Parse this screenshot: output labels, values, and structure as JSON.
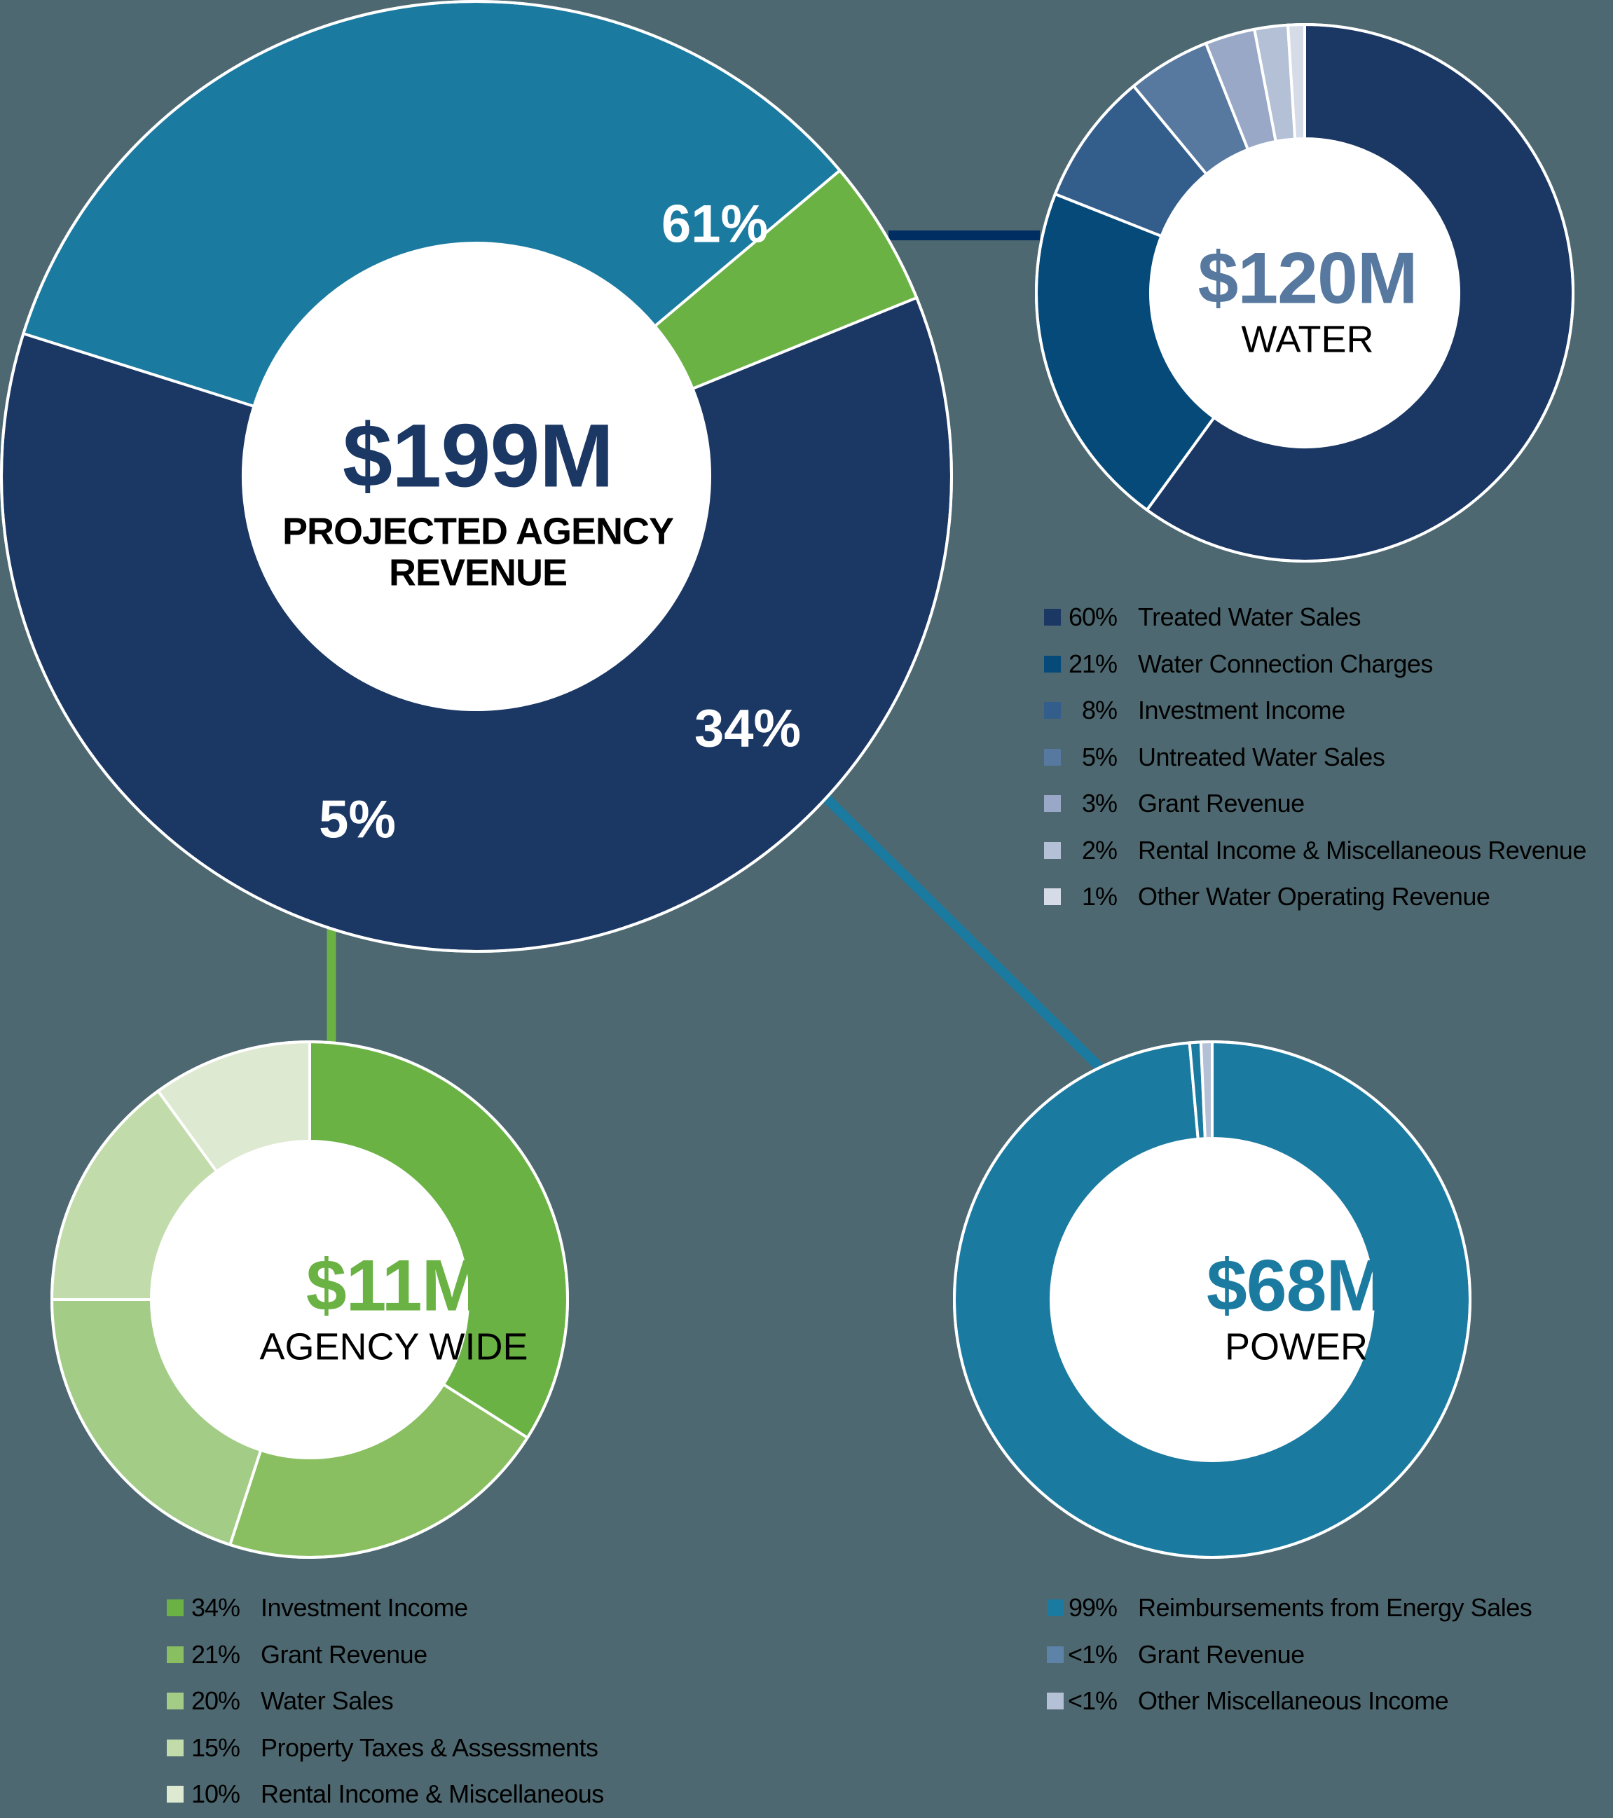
{
  "background_color": "#4d6870",
  "main": {
    "amount": "$199M",
    "caption_line1": "PROJECTED AGENCY",
    "caption_line2": "REVENUE",
    "amount_color": "#1b3764",
    "segment_labels": {
      "water": "61%",
      "power": "34%",
      "agency_wide": "5%"
    }
  },
  "water": {
    "amount": "$120M",
    "caption": "WATER",
    "amount_color": "#57789f",
    "legend": [
      {
        "pct": "60%",
        "label": "Treated Water Sales",
        "color": "#1b3764"
      },
      {
        "pct": "21%",
        "label": "Water Connection Charges",
        "color": "#054a78"
      },
      {
        "pct": "8%",
        "label": "Investment Income",
        "color": "#335d8a"
      },
      {
        "pct": "5%",
        "label": "Untreated Water Sales",
        "color": "#57789f"
      },
      {
        "pct": "3%",
        "label": "Grant Revenue",
        "color": "#98a8c6"
      },
      {
        "pct": "2%",
        "label": "Rental Income & Miscellaneous Revenue",
        "color": "#b3c0d5"
      },
      {
        "pct": "1%",
        "label": "Other Water Operating Revenue",
        "color": "#d6dbe8"
      }
    ]
  },
  "agency_wide": {
    "amount": "$11M",
    "caption": "AGENCY WIDE",
    "amount_color": "#6bb245",
    "legend": [
      {
        "pct": "34%",
        "label": "Investment Income",
        "color": "#6bb245"
      },
      {
        "pct": "21%",
        "label": "Grant Revenue",
        "color": "#89bf61"
      },
      {
        "pct": "20%",
        "label": "Water Sales",
        "color": "#a3cc86"
      },
      {
        "pct": "15%",
        "label": "Property Taxes & Assessments",
        "color": "#c1dbaa"
      },
      {
        "pct": "10%",
        "label": "Rental Income & Miscellaneous",
        "color": "#dde9d0"
      }
    ]
  },
  "power": {
    "amount": "$68M",
    "caption": "POWER",
    "amount_color": "#1b7aa0",
    "legend": [
      {
        "pct": "99%",
        "label": "Reimbursements from Energy Sales",
        "color": "#1b7aa0"
      },
      {
        "pct": "<1%",
        "label": "Grant Revenue",
        "color": "#5d84a8"
      },
      {
        "pct": "<1%",
        "label": "Other Miscellaneous Income",
        "color": "#b3c0d5"
      }
    ]
  },
  "chart_data": [
    {
      "type": "pie",
      "title": "$199M Projected Agency Revenue",
      "categories": [
        "Water",
        "Power",
        "Agency Wide"
      ],
      "values": [
        61,
        34,
        5
      ],
      "total": "$199M",
      "colors": [
        "#1b3764",
        "#1b7aa0",
        "#6bb245"
      ],
      "start_angle_deg": 67.9
    },
    {
      "type": "pie",
      "title": "$120M Water",
      "categories": [
        "Treated Water Sales",
        "Water Connection Charges",
        "Investment Income",
        "Untreated Water Sales",
        "Grant Revenue",
        "Rental Income & Miscellaneous Revenue",
        "Other Water Operating Revenue"
      ],
      "values": [
        60,
        21,
        8,
        5,
        3,
        2,
        1
      ],
      "total": "$120M",
      "colors": [
        "#1b3764",
        "#054a78",
        "#335d8a",
        "#57789f",
        "#98a8c6",
        "#b3c0d5",
        "#d6dbe8"
      ],
      "start_angle_deg": 0
    },
    {
      "type": "pie",
      "title": "$11M Agency Wide",
      "categories": [
        "Investment Income",
        "Grant Revenue",
        "Water Sales",
        "Property Taxes & Assessments",
        "Rental Income & Miscellaneous"
      ],
      "values": [
        34,
        21,
        20,
        15,
        10
      ],
      "total": "$11M",
      "colors": [
        "#6bb245",
        "#89bf61",
        "#a3cc86",
        "#c1dbaa",
        "#dde9d0"
      ],
      "start_angle_deg": 0
    },
    {
      "type": "pie",
      "title": "$68M Power",
      "categories": [
        "Reimbursements from Energy Sales",
        "Grant Revenue",
        "Other Miscellaneous Income"
      ],
      "values": [
        98.6,
        0.7,
        0.7
      ],
      "value_labels": [
        "99%",
        "<1%",
        "<1%"
      ],
      "total": "$68M",
      "colors": [
        "#1b7aa0",
        "#1b7aa0",
        "#b3c0d5"
      ],
      "start_angle_deg": 0
    }
  ]
}
